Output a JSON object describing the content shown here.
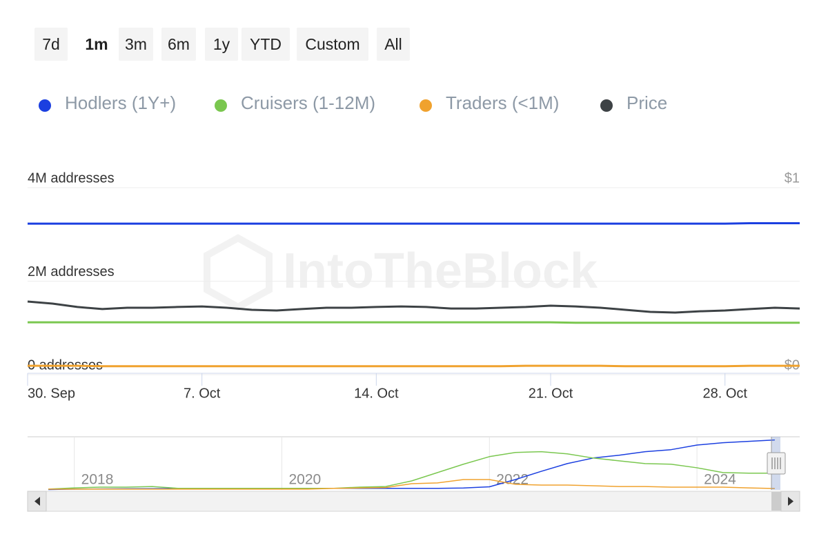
{
  "range_buttons": [
    "7d",
    "1m",
    "3m",
    "6m",
    "1y",
    "YTD",
    "Custom",
    "All"
  ],
  "selected_range": "1m",
  "watermark": "IntoTheBlock",
  "chart_data": [
    {
      "type": "line",
      "categories": [
        "30. Sep",
        null,
        null,
        null,
        null,
        null,
        null,
        "7. Oct",
        null,
        null,
        null,
        null,
        null,
        null,
        "14. Oct",
        null,
        null,
        null,
        null,
        null,
        null,
        "21. Oct",
        null,
        null,
        null,
        null,
        null,
        null,
        "28. Oct",
        null,
        null,
        null
      ],
      "ylim": [
        0,
        4000000
      ],
      "yticks": [
        {
          "value": 0,
          "label": "0 addresses"
        },
        {
          "value": 2000000,
          "label": "2M addresses"
        },
        {
          "value": 4000000,
          "label": "4M addresses"
        }
      ],
      "y2lim": [
        0,
        1
      ],
      "y2ticks": [
        {
          "value": 0,
          "label": "$0"
        },
        {
          "value": 1,
          "label": "$1"
        }
      ],
      "grid": true,
      "series": [
        {
          "name": "Hodlers (1Y+)",
          "color": "#1b3fe0",
          "values": [
            3230000,
            3230000,
            3230000,
            3230000,
            3230000,
            3230000,
            3230000,
            3230000,
            3230000,
            3230000,
            3230000,
            3230000,
            3230000,
            3230000,
            3230000,
            3230000,
            3230000,
            3230000,
            3230000,
            3230000,
            3230000,
            3230000,
            3230000,
            3230000,
            3230000,
            3230000,
            3230000,
            3230000,
            3230000,
            3240000,
            3240000,
            3240000
          ]
        },
        {
          "name": "Cruisers (1-12M)",
          "color": "#7ac74f",
          "values": [
            1120000,
            1120000,
            1120000,
            1120000,
            1120000,
            1120000,
            1120000,
            1120000,
            1120000,
            1120000,
            1120000,
            1120000,
            1120000,
            1120000,
            1120000,
            1120000,
            1120000,
            1120000,
            1120000,
            1120000,
            1120000,
            1120000,
            1110000,
            1110000,
            1110000,
            1110000,
            1110000,
            1110000,
            1110000,
            1110000,
            1110000,
            1110000
          ]
        },
        {
          "name": "Traders (<1M)",
          "color": "#f0a22e",
          "values": [
            190000,
            190000,
            190000,
            180000,
            180000,
            180000,
            180000,
            180000,
            180000,
            180000,
            180000,
            180000,
            180000,
            180000,
            180000,
            180000,
            180000,
            180000,
            180000,
            180000,
            190000,
            190000,
            190000,
            190000,
            180000,
            180000,
            180000,
            180000,
            180000,
            190000,
            190000,
            190000
          ]
        },
        {
          "name": "Price",
          "color": "#3d4245",
          "axis": "y2",
          "values": [
            0.391,
            0.38,
            0.362,
            0.351,
            0.358,
            0.358,
            0.362,
            0.365,
            0.358,
            0.347,
            0.343,
            0.351,
            0.358,
            0.358,
            0.362,
            0.365,
            0.362,
            0.354,
            0.354,
            0.358,
            0.362,
            0.369,
            0.365,
            0.358,
            0.347,
            0.336,
            0.332,
            0.339,
            0.343,
            0.351,
            0.358,
            0.354
          ]
        }
      ]
    },
    {
      "type": "navigator",
      "x": [
        2017.75,
        2018,
        2018.25,
        2018.5,
        2018.75,
        2019,
        2019.25,
        2019.5,
        2019.75,
        2020,
        2020.25,
        2020.5,
        2020.75,
        2021,
        2021.25,
        2021.5,
        2021.75,
        2022,
        2022.25,
        2022.5,
        2022.75,
        2023,
        2023.25,
        2023.5,
        2023.75,
        2024,
        2024.25,
        2024.5,
        2024.75
      ],
      "xlim": [
        2017.55,
        2024.99
      ],
      "xticks": [
        2018,
        2020,
        2022,
        2024
      ],
      "ylim": [
        0,
        3.3
      ],
      "series": [
        {
          "name": "Hodlers (1Y+)",
          "color": "#1b3fe0",
          "values": [
            0.02,
            0.05,
            0.06,
            0.07,
            0.08,
            0.09,
            0.09,
            0.1,
            0.1,
            0.1,
            0.1,
            0.1,
            0.1,
            0.1,
            0.1,
            0.1,
            0.12,
            0.2,
            0.67,
            1.2,
            1.7,
            2.06,
            2.24,
            2.47,
            2.6,
            2.9,
            3.05,
            3.14,
            3.23
          ]
        },
        {
          "name": "Cruisers (1-12M)",
          "color": "#7ac74f",
          "values": [
            0.05,
            0.13,
            0.18,
            0.18,
            0.22,
            0.1,
            0.1,
            0.1,
            0.1,
            0.1,
            0.1,
            0.1,
            0.18,
            0.22,
            0.58,
            1.12,
            1.66,
            2.15,
            2.42,
            2.47,
            2.33,
            2.06,
            1.88,
            1.7,
            1.66,
            1.43,
            1.12,
            1.08,
            1.08
          ]
        },
        {
          "name": "Traders (<1M)",
          "color": "#f0a22e",
          "values": [
            0.05,
            0.05,
            0.05,
            0.05,
            0.05,
            0.05,
            0.05,
            0.05,
            0.05,
            0.05,
            0.05,
            0.1,
            0.12,
            0.15,
            0.4,
            0.45,
            0.67,
            0.67,
            0.36,
            0.31,
            0.31,
            0.27,
            0.22,
            0.22,
            0.18,
            0.18,
            0.18,
            0.13,
            0.09
          ]
        }
      ]
    }
  ]
}
